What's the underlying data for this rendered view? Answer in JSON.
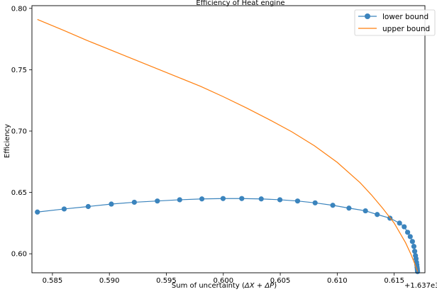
{
  "chart_data": {
    "type": "line",
    "title": "Efficiency of Heat engine",
    "xlabel": "Sum of uncertainty ($\\Delta X + \\Delta P$)",
    "xlabel_parts": [
      "Sum of uncertainty (",
      "ΔX",
      " + ",
      "ΔP",
      ")"
    ],
    "ylabel": "Efficiency",
    "x_offset_label": "+1.637e3",
    "xlim": [
      0.5832,
      0.6177
    ],
    "ylim": [
      0.5845,
      0.8022
    ],
    "xticks": [
      0.585,
      0.59,
      0.595,
      0.6,
      0.605,
      0.61,
      0.615
    ],
    "xtick_labels": [
      "0.585",
      "0.590",
      "0.595",
      "0.600",
      "0.605",
      "0.610",
      "0.615"
    ],
    "yticks": [
      0.6,
      0.65,
      0.7,
      0.75,
      0.8
    ],
    "ytick_labels": [
      "0.60",
      "0.65",
      "0.70",
      "0.75",
      "0.80"
    ],
    "grid": false,
    "legend_position": "top-right",
    "series": [
      {
        "name": "lower bound",
        "color": "#3b84bd",
        "marker": "circle",
        "x": [
          0.58368,
          0.58603,
          0.58814,
          0.59017,
          0.59219,
          0.59421,
          0.59617,
          0.59812,
          0.59998,
          0.60162,
          0.60333,
          0.60497,
          0.60652,
          0.60806,
          0.60961,
          0.61103,
          0.61248,
          0.61351,
          0.61463,
          0.61547,
          0.61588,
          0.61618,
          0.61641,
          0.6166,
          0.61673,
          0.6168,
          0.61687,
          0.61692,
          0.61696,
          0.61699,
          0.61701,
          0.61703,
          0.61704,
          0.61705
        ],
        "y": [
          0.634,
          0.6365,
          0.6385,
          0.6405,
          0.642,
          0.643,
          0.644,
          0.6447,
          0.645,
          0.645,
          0.6447,
          0.644,
          0.643,
          0.6415,
          0.6395,
          0.6372,
          0.635,
          0.632,
          0.629,
          0.625,
          0.622,
          0.6175,
          0.614,
          0.61,
          0.606,
          0.602,
          0.5985,
          0.596,
          0.593,
          0.591,
          0.589,
          0.5875,
          0.5862,
          0.5855
        ]
      },
      {
        "name": "upper bound",
        "color": "#ff7f0e",
        "marker": "none",
        "x": [
          0.58368,
          0.586,
          0.588,
          0.59,
          0.592,
          0.594,
          0.596,
          0.598,
          0.6,
          0.602,
          0.604,
          0.606,
          0.608,
          0.61,
          0.612,
          0.613,
          0.614,
          0.615,
          0.616,
          0.6165,
          0.6168,
          0.617,
          0.61705
        ],
        "y": [
          0.791,
          0.782,
          0.774,
          0.7665,
          0.759,
          0.7515,
          0.744,
          0.7365,
          0.728,
          0.719,
          0.7095,
          0.6995,
          0.688,
          0.6745,
          0.658,
          0.648,
          0.637,
          0.625,
          0.609,
          0.599,
          0.592,
          0.587,
          0.5855
        ]
      }
    ]
  }
}
